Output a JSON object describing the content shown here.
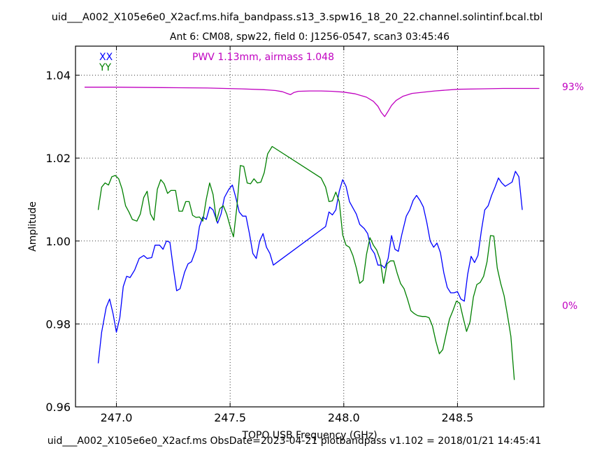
{
  "header": {
    "title": "uid___A002_X105e6e0_X2acf.ms.hifa_bandpass.s13_3.spw16_18_20_22.channel.solintinf.bcal.tbl",
    "subtitle": "Ant 6: CM08,  spw22,  field 0: J1256-0547,  scan3  03:45:46"
  },
  "footer": {
    "text": "uid___A002_X105e6e0_X2acf.ms  ObsDate=2023-04-21   plotbandpass v1.102 = 2018/01/21 14:45:41"
  },
  "colors": {
    "xx": "#0000ff",
    "yy": "#008000",
    "pwv": "#c000c0",
    "axes": "#000000"
  },
  "chart_data": {
    "type": "line",
    "xlabel": "TOPO USB Frequency (GHz)",
    "ylabel": "Amplitude",
    "xlim": [
      246.82,
      248.88
    ],
    "ylim": [
      0.96,
      1.047
    ],
    "x_ticks": [
      247.0,
      247.5,
      248.0,
      248.5
    ],
    "x_tick_labels": [
      "247.0",
      "247.5",
      "248.0",
      "248.5"
    ],
    "y_ticks": [
      0.96,
      0.98,
      1.0,
      1.02,
      1.04
    ],
    "y_tick_labels": [
      "0.96",
      "0.98",
      "1.00",
      "1.02",
      "1.04"
    ],
    "grid": true,
    "legend": [
      "XX",
      "YY"
    ],
    "annotation": "PWV 1.13mm, airmass 1.048",
    "right_axis_labels": {
      "top": "93%",
      "bottom": "0%"
    },
    "series": [
      {
        "name": "XX",
        "color": "#0000ff",
        "points": [
          [
            246.92,
            0.9705
          ],
          [
            246.935,
            0.978
          ],
          [
            246.955,
            0.984
          ],
          [
            246.97,
            0.986
          ],
          [
            246.985,
            0.9825
          ],
          [
            247.0,
            0.978
          ],
          [
            247.015,
            0.9815
          ],
          [
            247.03,
            0.989
          ],
          [
            247.045,
            0.9915
          ],
          [
            247.06,
            0.9912
          ],
          [
            247.08,
            0.993
          ],
          [
            247.1,
            0.9958
          ],
          [
            247.12,
            0.9965
          ],
          [
            247.135,
            0.9958
          ],
          [
            247.155,
            0.996
          ],
          [
            247.17,
            0.999
          ],
          [
            247.19,
            0.999
          ],
          [
            247.205,
            0.998
          ],
          [
            247.22,
            1.0
          ],
          [
            247.235,
            0.9997
          ],
          [
            247.25,
            0.9935
          ],
          [
            247.265,
            0.988
          ],
          [
            247.28,
            0.9885
          ],
          [
            247.3,
            0.9925
          ],
          [
            247.315,
            0.9945
          ],
          [
            247.33,
            0.995
          ],
          [
            247.35,
            0.998
          ],
          [
            247.365,
            1.0035
          ],
          [
            247.38,
            1.0058
          ],
          [
            247.395,
            1.0052
          ],
          [
            247.41,
            1.0082
          ],
          [
            247.425,
            1.0075
          ],
          [
            247.445,
            1.0043
          ],
          [
            247.46,
            1.0065
          ],
          [
            247.475,
            1.0105
          ],
          [
            247.495,
            1.0125
          ],
          [
            247.51,
            1.0135
          ],
          [
            247.525,
            1.0105
          ],
          [
            247.54,
            1.007
          ],
          [
            247.555,
            1.006
          ],
          [
            247.57,
            1.006
          ],
          [
            247.585,
            1.0018
          ],
          [
            247.6,
            0.997
          ],
          [
            247.615,
            0.9958
          ],
          [
            247.63,
            1.0
          ],
          [
            247.645,
            1.0018
          ],
          [
            247.66,
            0.9985
          ],
          [
            247.675,
            0.997
          ],
          [
            247.69,
            0.9942
          ],
          [
            247.92,
            1.0035
          ],
          [
            247.935,
            1.007
          ],
          [
            247.95,
            1.0063
          ],
          [
            247.965,
            1.0075
          ],
          [
            247.98,
            1.012
          ],
          [
            247.995,
            1.0148
          ],
          [
            248.01,
            1.0132
          ],
          [
            248.025,
            1.0095
          ],
          [
            248.04,
            1.008
          ],
          [
            248.055,
            1.0065
          ],
          [
            248.07,
            1.004
          ],
          [
            248.09,
            1.003
          ],
          [
            248.105,
            1.0018
          ],
          [
            248.12,
            0.9982
          ],
          [
            248.135,
            0.997
          ],
          [
            248.15,
            0.9942
          ],
          [
            248.165,
            0.9942
          ],
          [
            248.18,
            0.9935
          ],
          [
            248.195,
            0.9958
          ],
          [
            248.21,
            1.0013
          ],
          [
            248.225,
            0.998
          ],
          [
            248.24,
            0.9975
          ],
          [
            248.255,
            1.0015
          ],
          [
            248.275,
            1.006
          ],
          [
            248.29,
            1.0075
          ],
          [
            248.305,
            1.0098
          ],
          [
            248.32,
            1.011
          ],
          [
            248.335,
            1.0098
          ],
          [
            248.35,
            1.0082
          ],
          [
            248.365,
            1.0045
          ],
          [
            248.38,
            1.0
          ],
          [
            248.395,
            0.9985
          ],
          [
            248.41,
            0.9995
          ],
          [
            248.425,
            0.9972
          ],
          [
            248.44,
            0.9923
          ],
          [
            248.455,
            0.9888
          ],
          [
            248.47,
            0.9875
          ],
          [
            248.485,
            0.9875
          ],
          [
            248.5,
            0.9878
          ],
          [
            248.515,
            0.986
          ],
          [
            248.53,
            0.9855
          ],
          [
            248.545,
            0.992
          ],
          [
            248.56,
            0.9963
          ],
          [
            248.575,
            0.9948
          ],
          [
            248.59,
            0.9965
          ],
          [
            248.605,
            1.0025
          ],
          [
            248.62,
            1.0075
          ],
          [
            248.635,
            1.0085
          ],
          [
            248.65,
            1.011
          ],
          [
            248.665,
            1.013
          ],
          [
            248.68,
            1.0152
          ],
          [
            248.695,
            1.014
          ],
          [
            248.71,
            1.0132
          ],
          [
            248.725,
            1.0137
          ],
          [
            248.74,
            1.0142
          ],
          [
            248.755,
            1.0168
          ],
          [
            248.77,
            1.0155
          ],
          [
            248.785,
            1.0075
          ]
        ]
      },
      {
        "name": "YY",
        "color": "#008000",
        "points": [
          [
            246.92,
            1.0075
          ],
          [
            246.935,
            1.013
          ],
          [
            246.95,
            1.014
          ],
          [
            246.965,
            1.0135
          ],
          [
            246.98,
            1.0155
          ],
          [
            246.995,
            1.0158
          ],
          [
            247.01,
            1.015
          ],
          [
            247.025,
            1.0125
          ],
          [
            247.04,
            1.0085
          ],
          [
            247.055,
            1.007
          ],
          [
            247.07,
            1.0052
          ],
          [
            247.09,
            1.0048
          ],
          [
            247.105,
            1.0065
          ],
          [
            247.12,
            1.0105
          ],
          [
            247.135,
            1.012
          ],
          [
            247.15,
            1.0065
          ],
          [
            247.165,
            1.005
          ],
          [
            247.18,
            1.0125
          ],
          [
            247.195,
            1.0148
          ],
          [
            247.21,
            1.0138
          ],
          [
            247.225,
            1.0115
          ],
          [
            247.24,
            1.0122
          ],
          [
            247.26,
            1.0122
          ],
          [
            247.275,
            1.0072
          ],
          [
            247.29,
            1.0072
          ],
          [
            247.305,
            1.0095
          ],
          [
            247.32,
            1.0095
          ],
          [
            247.335,
            1.0062
          ],
          [
            247.35,
            1.0057
          ],
          [
            247.365,
            1.0058
          ],
          [
            247.38,
            1.0048
          ],
          [
            247.395,
            1.01
          ],
          [
            247.41,
            1.014
          ],
          [
            247.425,
            1.0112
          ],
          [
            247.44,
            1.0048
          ],
          [
            247.455,
            1.0078
          ],
          [
            247.47,
            1.0085
          ],
          [
            247.485,
            1.0065
          ],
          [
            247.5,
            1.0035
          ],
          [
            247.515,
            1.001
          ],
          [
            247.53,
            1.0083
          ],
          [
            247.545,
            1.0182
          ],
          [
            247.56,
            1.018
          ],
          [
            247.575,
            1.014
          ],
          [
            247.59,
            1.0138
          ],
          [
            247.605,
            1.015
          ],
          [
            247.62,
            1.014
          ],
          [
            247.635,
            1.0142
          ],
          [
            247.65,
            1.0165
          ],
          [
            247.665,
            1.021
          ],
          [
            247.685,
            1.0228
          ],
          [
            247.9,
            1.0152
          ],
          [
            247.92,
            1.013
          ],
          [
            247.935,
            1.0095
          ],
          [
            247.95,
            1.0097
          ],
          [
            247.965,
            1.0118
          ],
          [
            247.98,
            1.0095
          ],
          [
            247.995,
            1.0015
          ],
          [
            248.01,
            0.999
          ],
          [
            248.025,
            0.9985
          ],
          [
            248.04,
            0.9965
          ],
          [
            248.055,
            0.9935
          ],
          [
            248.07,
            0.9898
          ],
          [
            248.085,
            0.9905
          ],
          [
            248.1,
            0.9968
          ],
          [
            248.115,
            1.0008
          ],
          [
            248.13,
            0.999
          ],
          [
            248.145,
            0.9978
          ],
          [
            248.16,
            0.9955
          ],
          [
            248.175,
            0.9898
          ],
          [
            248.19,
            0.9945
          ],
          [
            248.205,
            0.9952
          ],
          [
            248.22,
            0.9952
          ],
          [
            248.235,
            0.9922
          ],
          [
            248.25,
            0.9897
          ],
          [
            248.265,
            0.9885
          ],
          [
            248.28,
            0.986
          ],
          [
            248.295,
            0.9832
          ],
          [
            248.31,
            0.9825
          ],
          [
            248.325,
            0.982
          ],
          [
            248.345,
            0.9818
          ],
          [
            248.36,
            0.9818
          ],
          [
            248.375,
            0.9815
          ],
          [
            248.39,
            0.9795
          ],
          [
            248.405,
            0.9758
          ],
          [
            248.42,
            0.9728
          ],
          [
            248.435,
            0.9738
          ],
          [
            248.45,
            0.9775
          ],
          [
            248.465,
            0.9812
          ],
          [
            248.48,
            0.9832
          ],
          [
            248.495,
            0.9855
          ],
          [
            248.51,
            0.985
          ],
          [
            248.525,
            0.9815
          ],
          [
            248.54,
            0.9782
          ],
          [
            248.555,
            0.9805
          ],
          [
            248.57,
            0.9865
          ],
          [
            248.585,
            0.9895
          ],
          [
            248.6,
            0.99
          ],
          [
            248.615,
            0.9915
          ],
          [
            248.63,
            0.995
          ],
          [
            248.645,
            1.0013
          ],
          [
            248.66,
            1.0012
          ],
          [
            248.675,
            0.9935
          ],
          [
            248.69,
            0.9898
          ],
          [
            248.705,
            0.9868
          ],
          [
            248.72,
            0.982
          ],
          [
            248.735,
            0.977
          ],
          [
            248.75,
            0.9665
          ]
        ]
      },
      {
        "name": "PWV",
        "color": "#c000c0",
        "points": [
          [
            246.86,
            1.0371
          ],
          [
            247.0,
            1.0371
          ],
          [
            247.2,
            1.037
          ],
          [
            247.4,
            1.0369
          ],
          [
            247.55,
            1.0367
          ],
          [
            247.65,
            1.0365
          ],
          [
            247.7,
            1.0363
          ],
          [
            247.73,
            1.036
          ],
          [
            247.75,
            1.0356
          ],
          [
            247.765,
            1.0353
          ],
          [
            247.78,
            1.0358
          ],
          [
            247.8,
            1.0361
          ],
          [
            247.85,
            1.0362
          ],
          [
            247.9,
            1.0362
          ],
          [
            247.95,
            1.0361
          ],
          [
            248.0,
            1.0359
          ],
          [
            248.05,
            1.0355
          ],
          [
            248.1,
            1.0347
          ],
          [
            248.13,
            1.0337
          ],
          [
            248.15,
            1.0325
          ],
          [
            248.165,
            1.031
          ],
          [
            248.18,
            1.03
          ],
          [
            248.195,
            1.0313
          ],
          [
            248.21,
            1.0327
          ],
          [
            248.23,
            1.0339
          ],
          [
            248.26,
            1.0349
          ],
          [
            248.3,
            1.0356
          ],
          [
            248.4,
            1.0362
          ],
          [
            248.5,
            1.0366
          ],
          [
            248.6,
            1.0367
          ],
          [
            248.7,
            1.0368
          ],
          [
            248.86,
            1.0368
          ]
        ]
      }
    ]
  }
}
